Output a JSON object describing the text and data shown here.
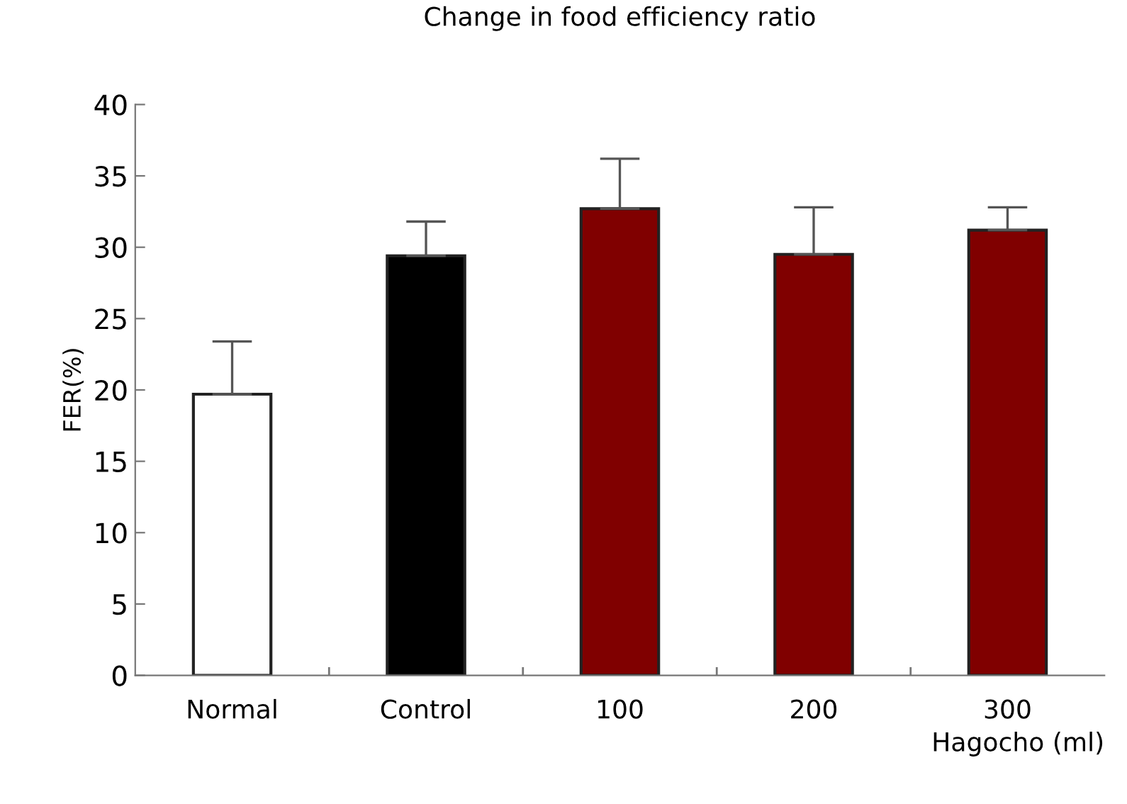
{
  "chart_data": {
    "type": "bar",
    "title": "Change in food efficiency ratio",
    "xlabel": "Hagocho (ml)",
    "ylabel": "FER(%)",
    "categories": [
      "Normal",
      "Control",
      "100",
      "200",
      "300"
    ],
    "values": [
      19.7,
      29.4,
      32.7,
      29.5,
      31.2
    ],
    "colors": [
      "#ffffff",
      "#000000",
      "#800000",
      "#800000",
      "#800000"
    ],
    "errors": [
      [
        19.7,
        23.4
      ],
      [
        29.4,
        31.8
      ],
      [
        32.7,
        36.2
      ],
      [
        29.5,
        32.8
      ],
      [
        31.2,
        32.8
      ]
    ],
    "ylim": [
      0,
      40
    ],
    "yticks": [
      0,
      5,
      10,
      15,
      20,
      25,
      30,
      35,
      40
    ],
    "grid": false,
    "legend": false
  }
}
